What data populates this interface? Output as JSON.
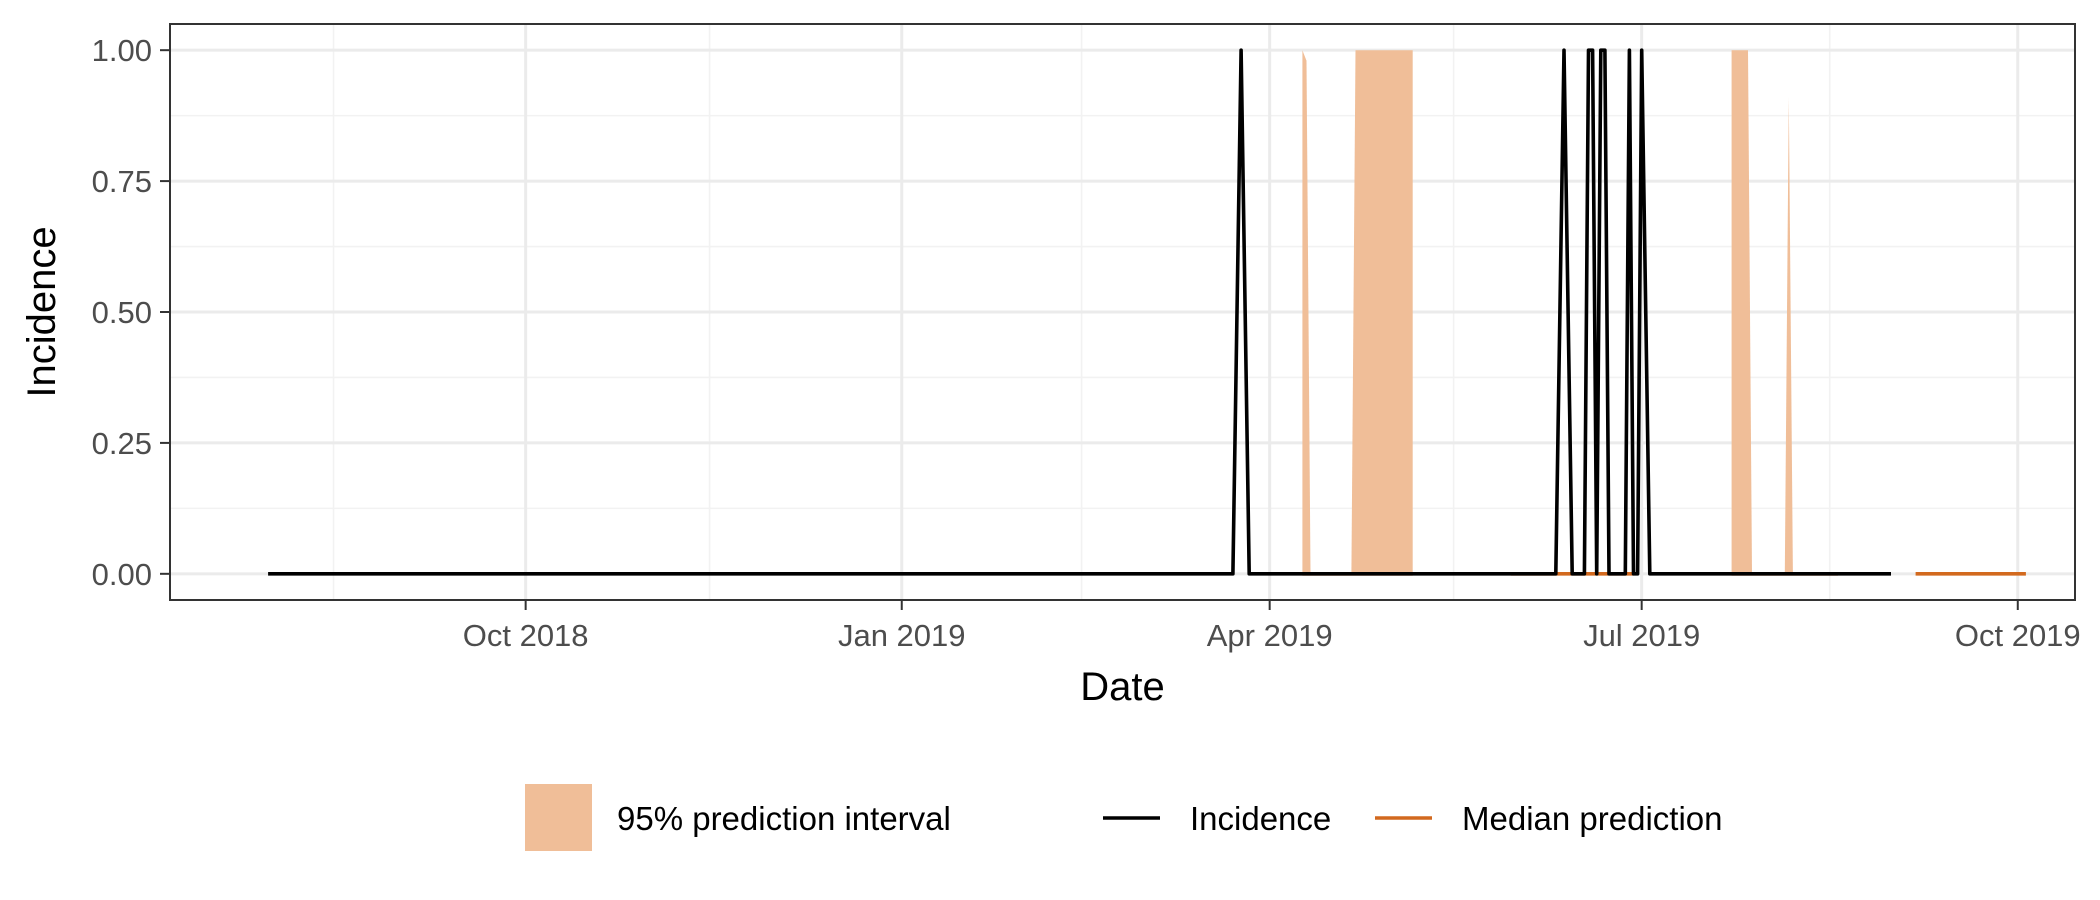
{
  "chart_data": {
    "type": "line",
    "xlabel": "Date",
    "ylabel": "Incidence",
    "x_axis_type": "date",
    "xlim": [
      "2018-07-06",
      "2019-10-15"
    ],
    "ylim": [
      -0.05,
      1.05
    ],
    "x_ticks": [
      {
        "date": "2018-10-01",
        "label": "Oct 2018"
      },
      {
        "date": "2019-01-01",
        "label": "Jan 2019"
      },
      {
        "date": "2019-04-01",
        "label": "Apr 2019"
      },
      {
        "date": "2019-07-01",
        "label": "Jul 2019"
      },
      {
        "date": "2019-10-01",
        "label": "Oct 2019"
      }
    ],
    "x_minor_ticks": [
      "2018-08-15",
      "2018-11-15",
      "2019-02-14",
      "2019-05-16",
      "2019-08-16"
    ],
    "y_ticks": [
      {
        "value": 0,
        "label": "0.00"
      },
      {
        "value": 0.25,
        "label": "0.25"
      },
      {
        "value": 0.5,
        "label": "0.50"
      },
      {
        "value": 0.75,
        "label": "0.75"
      },
      {
        "value": 1,
        "label": "1.00"
      }
    ],
    "y_minor_ticks": [
      0.125,
      0.375,
      0.625,
      0.875
    ],
    "grid": true,
    "legend_position": "bottom",
    "legend": [
      {
        "key": "interval",
        "label": "95% prediction interval",
        "kind": "fill",
        "color": "#f0be98"
      },
      {
        "key": "incidence",
        "label": "Incidence",
        "kind": "line",
        "color": "#000000"
      },
      {
        "key": "median",
        "label": "Median prediction",
        "kind": "line",
        "color": "#d2691e"
      }
    ],
    "series": [
      {
        "name": "Incidence",
        "kind": "line",
        "color": "#000000",
        "points": [
          [
            "2018-07-30",
            0
          ],
          [
            "2019-03-23",
            0
          ],
          [
            "2019-03-25",
            1
          ],
          [
            "2019-03-27",
            0
          ],
          [
            "2019-06-10",
            0
          ],
          [
            "2019-06-12",
            1
          ],
          [
            "2019-06-14",
            0
          ],
          [
            "2019-06-17",
            0
          ],
          [
            "2019-06-18",
            1
          ],
          [
            "2019-06-19",
            1
          ],
          [
            "2019-06-20",
            0
          ],
          [
            "2019-06-21",
            1
          ],
          [
            "2019-06-22",
            1
          ],
          [
            "2019-06-23",
            0
          ],
          [
            "2019-06-27",
            0
          ],
          [
            "2019-06-28",
            1
          ],
          [
            "2019-06-29",
            0
          ],
          [
            "2019-06-30",
            0
          ],
          [
            "2019-07-01",
            1
          ],
          [
            "2019-07-03",
            0
          ],
          [
            "2019-08-31",
            0
          ]
        ]
      },
      {
        "name": "Median prediction",
        "kind": "line",
        "color": "#d2691e",
        "segments": [
          [
            [
              "2019-04-09",
              0
            ],
            [
              "2019-05-06",
              0
            ]
          ],
          [
            [
              "2019-05-30",
              0
            ],
            [
              "2019-06-29",
              0
            ]
          ],
          [
            [
              "2019-07-23",
              0
            ],
            [
              "2019-08-18",
              0
            ]
          ],
          [
            [
              "2019-09-06",
              0
            ],
            [
              "2019-10-03",
              0
            ]
          ]
        ]
      },
      {
        "name": "95% prediction interval",
        "kind": "interval",
        "color": "#f0be98",
        "polygons": [
          [
            [
              "2019-04-09",
              0
            ],
            [
              "2019-04-09",
              1
            ],
            [
              "2019-04-10",
              0.98
            ],
            [
              "2019-04-11",
              0
            ]
          ],
          [
            [
              "2019-04-21",
              0
            ],
            [
              "2019-04-22",
              1
            ],
            [
              "2019-05-06",
              1
            ],
            [
              "2019-05-06",
              0
            ]
          ],
          [
            [
              "2019-07-23",
              0
            ],
            [
              "2019-07-23",
              1
            ],
            [
              "2019-07-27",
              1
            ],
            [
              "2019-07-28",
              0
            ]
          ],
          [
            [
              "2019-08-05",
              0
            ],
            [
              "2019-08-06",
              0.91
            ],
            [
              "2019-08-07",
              0
            ]
          ]
        ]
      }
    ]
  }
}
